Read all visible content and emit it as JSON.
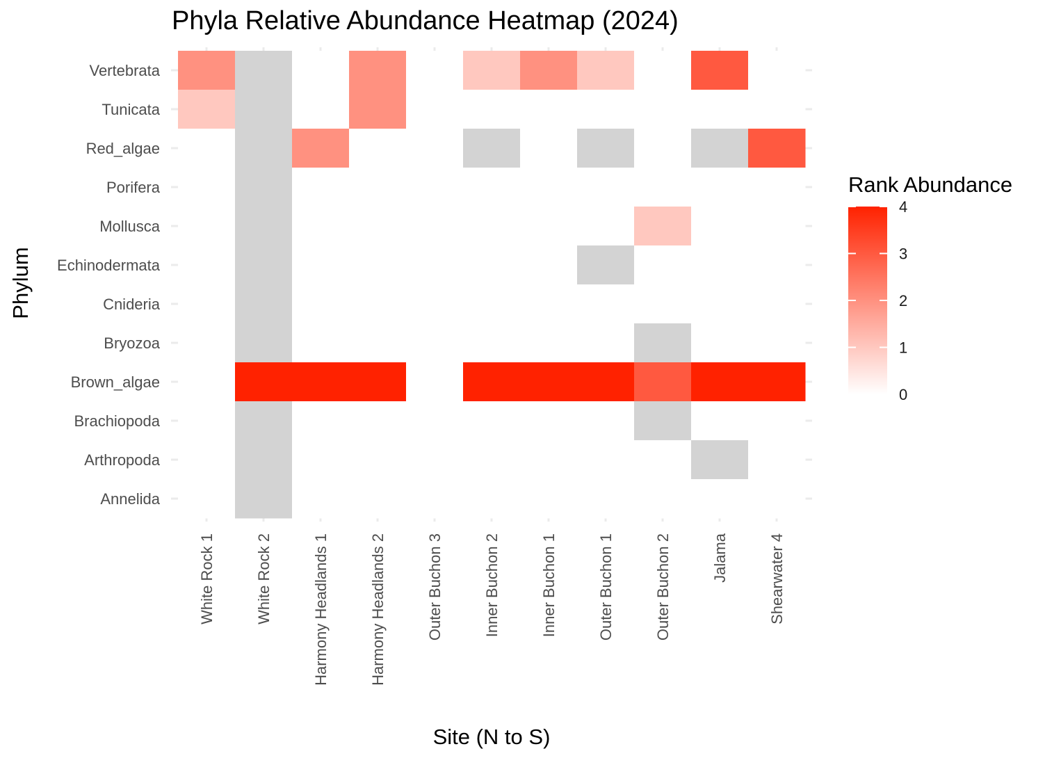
{
  "chart_data": {
    "type": "heatmap",
    "title": "Phyla Relative Abundance Heatmap (2024)",
    "xlabel": "Site (N to S)",
    "ylabel": "Phylum",
    "x": [
      "White Rock 1",
      "White Rock 2",
      "Harmony Headlands 1",
      "Harmony Headlands 2",
      "Outer Buchon 3",
      "Inner Buchon 2",
      "Inner Buchon 1",
      "Outer Buchon 1",
      "Outer Buchon 2",
      "Jalama",
      "Shearwater 4"
    ],
    "y": [
      "Vertebrata",
      "Tunicata",
      "Red_algae",
      "Porifera",
      "Mollusca",
      "Echinodermata",
      "Cnideria",
      "Bryozoa",
      "Brown_algae",
      "Brachiopoda",
      "Arthropoda",
      "Annelida"
    ],
    "values": [
      [
        2,
        null,
        0,
        2,
        0,
        1,
        2,
        1,
        0,
        3,
        0
      ],
      [
        1,
        null,
        0,
        2,
        0,
        0,
        0,
        0,
        0,
        0,
        0
      ],
      [
        0,
        null,
        2,
        0,
        0,
        null,
        0,
        null,
        0,
        null,
        3
      ],
      [
        0,
        null,
        0,
        0,
        0,
        0,
        0,
        0,
        0,
        0,
        0
      ],
      [
        0,
        null,
        0,
        0,
        0,
        0,
        0,
        0,
        1,
        0,
        0
      ],
      [
        0,
        null,
        0,
        0,
        0,
        0,
        0,
        null,
        0,
        0,
        0
      ],
      [
        0,
        null,
        0,
        0,
        0,
        0,
        0,
        0,
        0,
        0,
        0
      ],
      [
        0,
        null,
        0,
        0,
        0,
        0,
        0,
        0,
        null,
        0,
        0
      ],
      [
        0,
        4,
        4,
        4,
        0,
        4,
        4,
        4,
        3,
        4,
        4
      ],
      [
        0,
        null,
        0,
        0,
        0,
        0,
        0,
        0,
        null,
        0,
        0
      ],
      [
        0,
        null,
        0,
        0,
        0,
        0,
        0,
        0,
        0,
        null,
        0
      ],
      [
        0,
        null,
        0,
        0,
        0,
        0,
        0,
        0,
        0,
        0,
        0
      ]
    ],
    "value_range": [
      0,
      4
    ],
    "colors": {
      "low": "#ffffff",
      "high": "#ff2200",
      "missing": "#d3d3d3",
      "grid": "#ebebeb"
    },
    "legend": {
      "title": "Rank Abundance",
      "ticks": [
        "0",
        "1",
        "2",
        "3",
        "4"
      ],
      "placement": "right"
    },
    "grid": true
  }
}
